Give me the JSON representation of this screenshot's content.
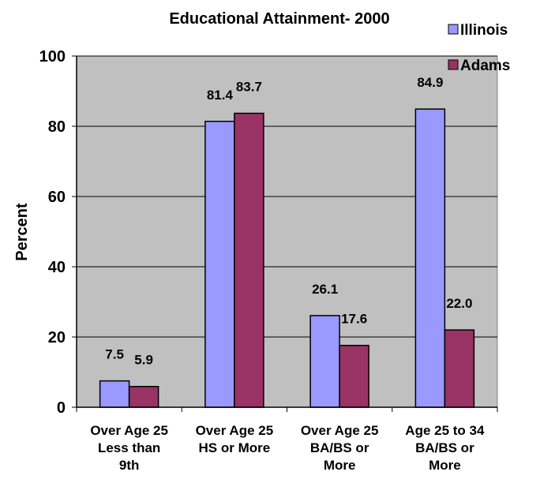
{
  "chart_data": {
    "type": "bar",
    "title": "Educational Attainment- 2000",
    "ylabel": "Percent",
    "xlabel": "",
    "ylim": [
      0,
      100
    ],
    "yticks": [
      0,
      20,
      40,
      60,
      80,
      100
    ],
    "grid": true,
    "legend_position": "top-right",
    "categories": [
      [
        "Over Age 25",
        "Less than",
        "9th"
      ],
      [
        "Over Age 25",
        "HS or More"
      ],
      [
        "Over Age 25",
        "BA/BS or",
        "More"
      ],
      [
        "Age 25 to 34",
        "BA/BS or",
        "More"
      ]
    ],
    "series": [
      {
        "name": "Illinois",
        "color": "#9999ff",
        "values": [
          7.5,
          81.4,
          26.1,
          84.9
        ],
        "labels": [
          "7.5",
          "81.4",
          "26.1",
          "84.9"
        ]
      },
      {
        "name": "Adams",
        "color": "#993366",
        "values": [
          5.9,
          83.7,
          17.6,
          22.0
        ],
        "labels": [
          "5.9",
          "83.7",
          "17.6",
          "22.0"
        ]
      }
    ],
    "plot_background": "#c0c0c0"
  }
}
